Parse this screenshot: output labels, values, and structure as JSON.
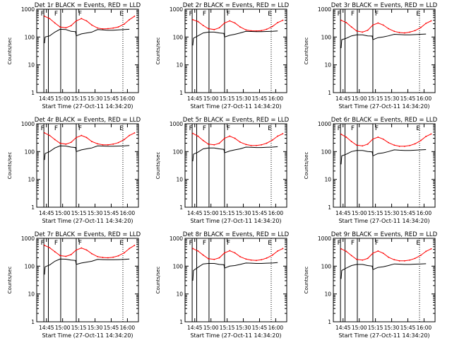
{
  "chart_data": [
    {
      "type": "line",
      "title": "Det 1r BLACK = Events, RED = LLD",
      "xlabel": "Start Time (27-Oct-11 14:34:20)",
      "ylabel": "Counts/sec",
      "yscale": "log",
      "ylim": [
        1,
        1000
      ],
      "xticks": [
        "14:45",
        "15:00",
        "15:15",
        "15:30",
        "15:45",
        "16:00"
      ],
      "annotations": [
        "F",
        "F",
        "F",
        "E"
      ],
      "series": [
        {
          "name": "LLD",
          "color": "#ff0000",
          "x": [
            14.72,
            14.8,
            14.88,
            14.96,
            15.05,
            15.13,
            15.21,
            15.29,
            15.37,
            15.45,
            15.54,
            15.62,
            15.7,
            15.78,
            15.86,
            15.95,
            16.03,
            16.11
          ],
          "y": [
            560,
            460,
            320,
            230,
            215,
            255,
            380,
            460,
            380,
            270,
            210,
            195,
            200,
            210,
            230,
            290,
            420,
            560
          ]
        },
        {
          "name": "Events",
          "color": "#000000",
          "x": [
            14.72,
            14.73,
            14.8,
            14.88,
            14.96,
            15.05,
            15.13,
            15.2,
            15.21,
            15.29,
            15.37,
            15.45,
            15.54,
            15.62,
            15.7,
            15.78,
            15.86,
            15.95,
            16.03
          ],
          "y": [
            60,
            100,
            110,
            150,
            190,
            185,
            160,
            155,
            110,
            130,
            140,
            150,
            185,
            180,
            175,
            175,
            180,
            185,
            190
          ]
        }
      ]
    },
    {
      "type": "line",
      "title": "Det 2r BLACK = Events, RED = LLD",
      "xlabel": "Start Time (27-Oct-11 14:34:20)",
      "ylabel": "Counts/sec",
      "yscale": "log",
      "ylim": [
        1,
        1000
      ],
      "xticks": [
        "14:45",
        "15:00",
        "15:15",
        "15:30",
        "15:45",
        "16:00"
      ],
      "annotations": [
        "F",
        "F",
        "F",
        "E"
      ],
      "series": [
        {
          "name": "LLD",
          "color": "#ff0000",
          "x": [
            14.72,
            14.8,
            14.88,
            14.96,
            15.05,
            15.13,
            15.21,
            15.29,
            15.37,
            15.45,
            15.54,
            15.62,
            15.7,
            15.78,
            15.86,
            15.95,
            16.03,
            16.11
          ],
          "y": [
            420,
            360,
            260,
            200,
            185,
            215,
            320,
            380,
            320,
            230,
            180,
            168,
            165,
            170,
            190,
            240,
            330,
            400
          ]
        },
        {
          "name": "Events",
          "color": "#000000",
          "x": [
            14.72,
            14.73,
            14.8,
            14.88,
            14.96,
            15.05,
            15.13,
            15.2,
            15.21,
            15.29,
            15.37,
            15.45,
            15.54,
            15.62,
            15.7,
            15.78,
            15.86,
            15.95,
            16.03
          ],
          "y": [
            50,
            90,
            110,
            140,
            150,
            150,
            140,
            135,
            100,
            115,
            125,
            140,
            160,
            158,
            155,
            155,
            158,
            160,
            165
          ]
        }
      ]
    },
    {
      "type": "line",
      "title": "Det 3r BLACK = Events, RED = LLD",
      "xlabel": "Start Time (27-Oct-11 14:34:20)",
      "ylabel": "Counts/sec",
      "yscale": "log",
      "ylim": [
        1,
        1000
      ],
      "xticks": [
        "14:45",
        "15:00",
        "15:15",
        "15:30",
        "15:45",
        "16:00"
      ],
      "annotations": [
        "F",
        "F",
        "F",
        "E"
      ],
      "series": [
        {
          "name": "LLD",
          "color": "#ff0000",
          "x": [
            14.72,
            14.8,
            14.88,
            14.96,
            15.05,
            15.13,
            15.21,
            15.29,
            15.37,
            15.45,
            15.54,
            15.62,
            15.7,
            15.78,
            15.86,
            15.95,
            16.03,
            16.11
          ],
          "y": [
            400,
            330,
            230,
            165,
            150,
            175,
            270,
            320,
            270,
            200,
            160,
            145,
            140,
            150,
            170,
            220,
            310,
            380
          ]
        },
        {
          "name": "Events",
          "color": "#000000",
          "x": [
            14.72,
            14.73,
            14.8,
            14.88,
            14.96,
            15.05,
            15.13,
            15.2,
            15.21,
            15.29,
            15.37,
            15.45,
            15.54,
            15.62,
            15.7,
            15.78,
            15.86,
            15.95,
            16.03
          ],
          "y": [
            40,
            80,
            90,
            110,
            120,
            120,
            110,
            108,
            80,
            95,
            100,
            110,
            125,
            122,
            120,
            120,
            122,
            125,
            128
          ]
        }
      ]
    },
    {
      "type": "line",
      "title": "Det 4r BLACK = Events, RED = LLD",
      "xlabel": "Start Time (27-Oct-11 14:34:20)",
      "ylabel": "Counts/sec",
      "yscale": "log",
      "ylim": [
        1,
        1000
      ],
      "xticks": [
        "14:45",
        "15:00",
        "15:15",
        "15:30",
        "15:45",
        "16:00"
      ],
      "annotations": [
        "F",
        "F",
        "F",
        "E"
      ],
      "series": [
        {
          "name": "LLD",
          "color": "#ff0000",
          "x": [
            14.72,
            14.8,
            14.88,
            14.96,
            15.05,
            15.13,
            15.21,
            15.29,
            15.37,
            15.45,
            15.54,
            15.62,
            15.7,
            15.78,
            15.86,
            15.95,
            16.03,
            16.11
          ],
          "y": [
            470,
            380,
            270,
            200,
            185,
            215,
            320,
            380,
            320,
            230,
            190,
            175,
            175,
            185,
            210,
            270,
            380,
            470
          ]
        },
        {
          "name": "Events",
          "color": "#000000",
          "x": [
            14.72,
            14.73,
            14.8,
            14.88,
            14.96,
            15.05,
            15.13,
            15.2,
            15.21,
            15.29,
            15.37,
            15.45,
            15.54,
            15.62,
            15.7,
            15.78,
            15.86,
            15.95,
            16.03
          ],
          "y": [
            50,
            85,
            100,
            135,
            160,
            158,
            145,
            140,
            100,
            115,
            125,
            135,
            160,
            158,
            155,
            155,
            158,
            160,
            165
          ]
        }
      ]
    },
    {
      "type": "line",
      "title": "Det 5r BLACK = Events, RED = LLD",
      "xlabel": "Start Time (27-Oct-11 14:34:20)",
      "ylabel": "Counts/sec",
      "yscale": "log",
      "ylim": [
        1,
        1000
      ],
      "xticks": [
        "14:45",
        "15:00",
        "15:15",
        "15:30",
        "15:45",
        "16:00"
      ],
      "annotations": [
        "F",
        "F",
        "F",
        "E"
      ],
      "series": [
        {
          "name": "LLD",
          "color": "#ff0000",
          "x": [
            14.72,
            14.8,
            14.88,
            14.96,
            15.05,
            15.13,
            15.21,
            15.29,
            15.37,
            15.45,
            15.54,
            15.62,
            15.7,
            15.78,
            15.86,
            15.95,
            16.03,
            16.11
          ],
          "y": [
            450,
            360,
            250,
            185,
            175,
            200,
            300,
            360,
            300,
            220,
            180,
            165,
            165,
            175,
            200,
            260,
            360,
            440
          ]
        },
        {
          "name": "Events",
          "color": "#000000",
          "x": [
            14.72,
            14.73,
            14.8,
            14.88,
            14.96,
            15.05,
            15.13,
            15.2,
            15.21,
            15.29,
            15.37,
            15.45,
            15.54,
            15.62,
            15.7,
            15.78,
            15.86,
            15.95,
            16.03
          ],
          "y": [
            45,
            80,
            95,
            125,
            135,
            135,
            125,
            120,
            90,
            105,
            115,
            125,
            145,
            143,
            140,
            140,
            143,
            145,
            150
          ]
        }
      ]
    },
    {
      "type": "line",
      "title": "Det 6r BLACK = Events, RED = LLD",
      "xlabel": "Start Time (27-Oct-11 14:34:20)",
      "ylabel": "Counts/sec",
      "yscale": "log",
      "ylim": [
        1,
        1000
      ],
      "xticks": [
        "14:45",
        "15:00",
        "15:15",
        "15:30",
        "15:45",
        "16:00"
      ],
      "annotations": [
        "F",
        "F",
        "F",
        "E"
      ],
      "series": [
        {
          "name": "LLD",
          "color": "#ff0000",
          "x": [
            14.72,
            14.8,
            14.88,
            14.96,
            15.05,
            15.13,
            15.21,
            15.29,
            15.37,
            15.45,
            15.54,
            15.62,
            15.7,
            15.78,
            15.86,
            15.95,
            16.03,
            16.11
          ],
          "y": [
            420,
            330,
            230,
            170,
            160,
            185,
            280,
            330,
            280,
            210,
            170,
            155,
            155,
            165,
            190,
            250,
            350,
            430
          ]
        },
        {
          "name": "Events",
          "color": "#000000",
          "x": [
            14.72,
            14.73,
            14.8,
            14.88,
            14.96,
            15.05,
            15.13,
            15.2,
            15.21,
            15.29,
            15.37,
            15.45,
            15.54,
            15.62,
            15.7,
            15.78,
            15.86,
            15.95,
            16.03
          ],
          "y": [
            35,
            70,
            80,
            100,
            110,
            110,
            100,
            98,
            70,
            85,
            90,
            100,
            115,
            112,
            110,
            110,
            112,
            115,
            118
          ]
        }
      ]
    },
    {
      "type": "line",
      "title": "Det 7r BLACK = Events, RED = LLD",
      "xlabel": "Start Time (27-Oct-11 14:34:20)",
      "ylabel": "Counts/sec",
      "yscale": "log",
      "ylim": [
        1,
        1000
      ],
      "xticks": [
        "14:45",
        "15:00",
        "15:15",
        "15:30",
        "15:45",
        "16:00"
      ],
      "annotations": [
        "F",
        "F",
        "F",
        "E"
      ],
      "series": [
        {
          "name": "LLD",
          "color": "#ff0000",
          "x": [
            14.72,
            14.8,
            14.88,
            14.96,
            15.05,
            15.13,
            15.21,
            15.29,
            15.37,
            15.45,
            15.54,
            15.62,
            15.7,
            15.78,
            15.86,
            15.95,
            16.03,
            16.11
          ],
          "y": [
            560,
            460,
            330,
            240,
            225,
            260,
            380,
            450,
            380,
            280,
            220,
            205,
            200,
            210,
            235,
            300,
            430,
            560
          ]
        },
        {
          "name": "Events",
          "color": "#000000",
          "x": [
            14.72,
            14.73,
            14.8,
            14.88,
            14.96,
            15.05,
            15.13,
            15.2,
            15.21,
            15.29,
            15.37,
            15.45,
            15.54,
            15.62,
            15.7,
            15.78,
            15.86,
            15.95,
            16.03
          ],
          "y": [
            50,
            95,
            110,
            150,
            180,
            178,
            165,
            160,
            115,
            130,
            140,
            150,
            175,
            172,
            170,
            170,
            172,
            175,
            180
          ]
        }
      ]
    },
    {
      "type": "line",
      "title": "Det 8r BLACK = Events, RED = LLD",
      "xlabel": "Start Time (27-Oct-11 14:34:20)",
      "ylabel": "Counts/sec",
      "yscale": "log",
      "ylim": [
        1,
        1000
      ],
      "xticks": [
        "14:45",
        "15:00",
        "15:15",
        "15:30",
        "15:45",
        "16:00"
      ],
      "annotations": [
        "F",
        "F",
        "F",
        "E"
      ],
      "series": [
        {
          "name": "LLD",
          "color": "#ff0000",
          "x": [
            14.72,
            14.8,
            14.88,
            14.96,
            15.05,
            15.13,
            15.21,
            15.29,
            15.37,
            15.45,
            15.54,
            15.62,
            15.7,
            15.78,
            15.86,
            15.95,
            16.03,
            16.11
          ],
          "y": [
            430,
            350,
            250,
            185,
            175,
            200,
            300,
            360,
            300,
            220,
            180,
            165,
            160,
            170,
            195,
            250,
            350,
            430
          ]
        },
        {
          "name": "Events",
          "color": "#000000",
          "x": [
            14.72,
            14.73,
            14.8,
            14.88,
            14.96,
            15.05,
            15.13,
            15.2,
            15.21,
            15.29,
            15.37,
            15.45,
            15.54,
            15.62,
            15.7,
            15.78,
            15.86,
            15.95,
            16.03
          ],
          "y": [
            30,
            70,
            90,
            120,
            125,
            125,
            115,
            112,
            85,
            100,
            105,
            115,
            130,
            128,
            125,
            125,
            128,
            130,
            135
          ]
        }
      ]
    },
    {
      "type": "line",
      "title": "Det 9r BLACK = Events, RED = LLD",
      "xlabel": "Start Time (27-Oct-11 14:34:20)",
      "ylabel": "Counts/sec",
      "yscale": "log",
      "ylim": [
        1,
        1000
      ],
      "xticks": [
        "14:45",
        "15:00",
        "15:15",
        "15:30",
        "15:45",
        "16:00"
      ],
      "annotations": [
        "F",
        "F",
        "F",
        "E"
      ],
      "series": [
        {
          "name": "LLD",
          "color": "#ff0000",
          "x": [
            14.72,
            14.8,
            14.88,
            14.96,
            15.05,
            15.13,
            15.21,
            15.29,
            15.37,
            15.45,
            15.54,
            15.62,
            15.7,
            15.78,
            15.86,
            15.95,
            16.03,
            16.11
          ],
          "y": [
            420,
            340,
            240,
            175,
            165,
            190,
            290,
            350,
            290,
            210,
            170,
            155,
            155,
            165,
            190,
            245,
            340,
            420
          ]
        },
        {
          "name": "Events",
          "color": "#000000",
          "x": [
            14.72,
            14.73,
            14.8,
            14.88,
            14.96,
            15.05,
            15.13,
            15.2,
            15.21,
            15.29,
            15.37,
            15.45,
            15.54,
            15.62,
            15.7,
            15.78,
            15.86,
            15.95,
            16.03
          ],
          "y": [
            35,
            70,
            85,
            105,
            115,
            115,
            105,
            100,
            75,
            90,
            95,
            105,
            120,
            118,
            115,
            115,
            118,
            120,
            122
          ]
        }
      ]
    }
  ]
}
